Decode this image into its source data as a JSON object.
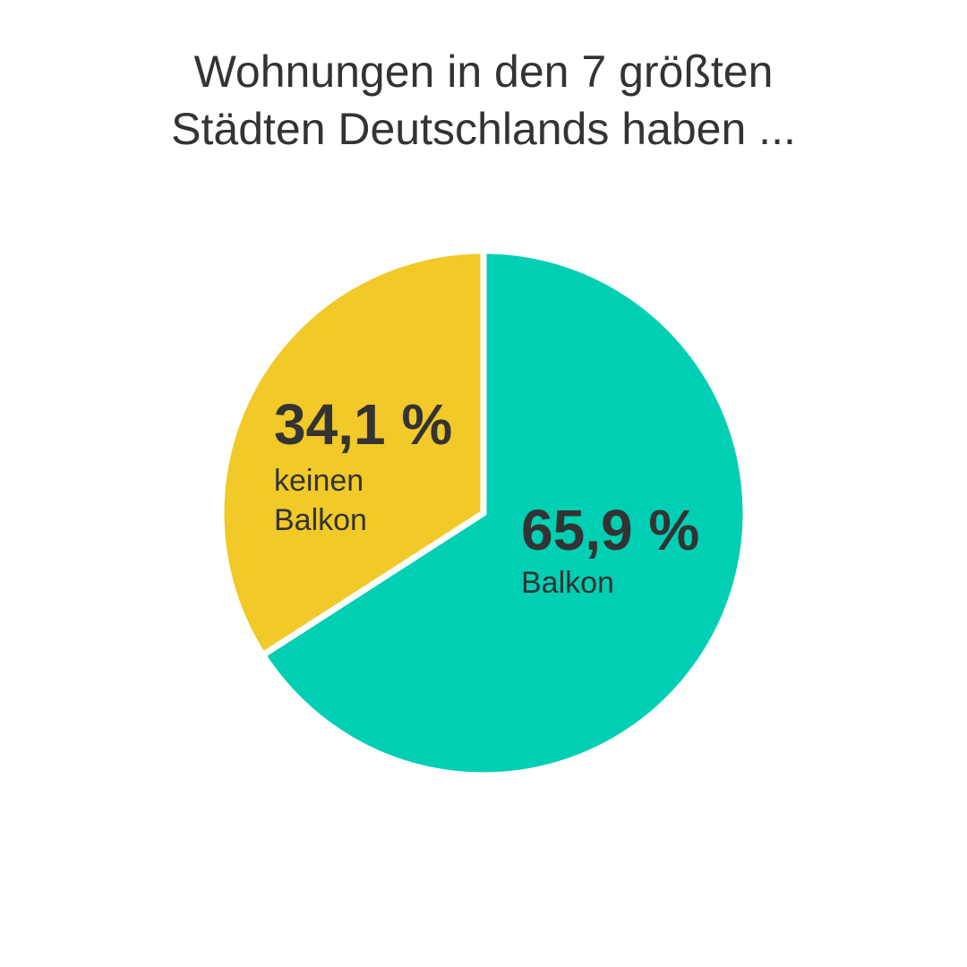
{
  "chart_data": {
    "type": "pie",
    "title_lines": [
      "Wohnungen in den 7 größten",
      "Städten Deutschlands haben ..."
    ],
    "slices": [
      {
        "value": 65.9,
        "value_label": "65,9 %",
        "label_lines": [
          "Balkon"
        ],
        "color": "#00CFB4"
      },
      {
        "value": 34.1,
        "value_label": "34,1 %",
        "label_lines": [
          "keinen",
          "Balkon"
        ],
        "color": "#F1C928"
      }
    ],
    "start_angle": "12 o'clock",
    "direction": "clockwise"
  }
}
